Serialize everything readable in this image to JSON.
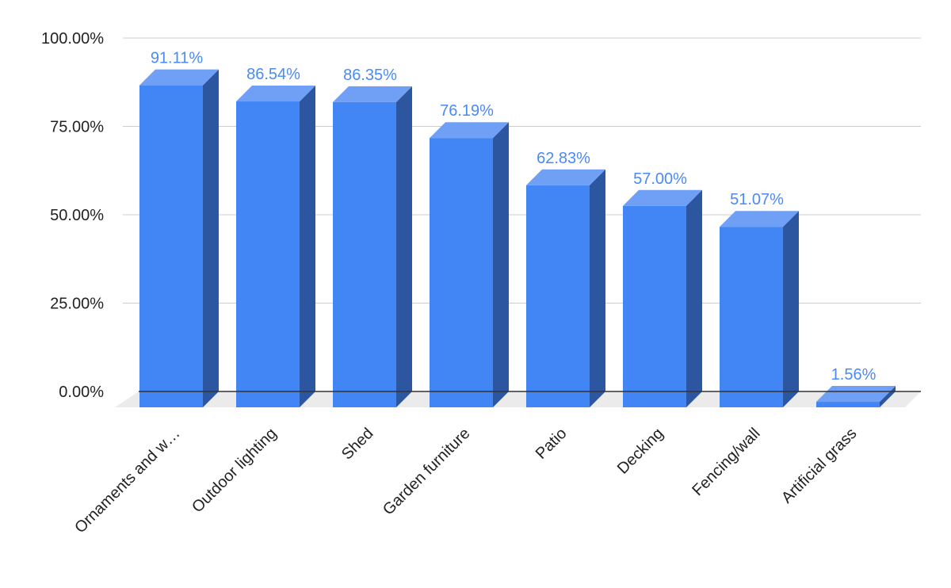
{
  "chart_data": {
    "type": "bar",
    "style": "3d",
    "categories": [
      "Ornaments and w…",
      "Outdoor lighting",
      "Shed",
      "Garden furniture",
      "Patio",
      "Decking",
      "Fencing/wall",
      "Artificial grass"
    ],
    "values": [
      91.11,
      86.54,
      86.35,
      76.19,
      62.83,
      57.0,
      51.07,
      1.56
    ],
    "data_labels": [
      "91.11%",
      "86.54%",
      "86.35%",
      "76.19%",
      "62.83%",
      "57.00%",
      "51.07%",
      "1.56%"
    ],
    "y_ticks": [
      0,
      25,
      50,
      75,
      100
    ],
    "y_tick_labels": [
      "0.00%",
      "25.00%",
      "50.00%",
      "75.00%",
      "100.00%"
    ],
    "ylim": [
      0,
      100
    ],
    "grid": true,
    "legend": "none",
    "colors": {
      "bar_front": "#4285f4",
      "bar_top": "#6fa0f6",
      "bar_side": "#2c56a0",
      "floor": "#ebebeb",
      "label": "#4a8af4"
    }
  }
}
